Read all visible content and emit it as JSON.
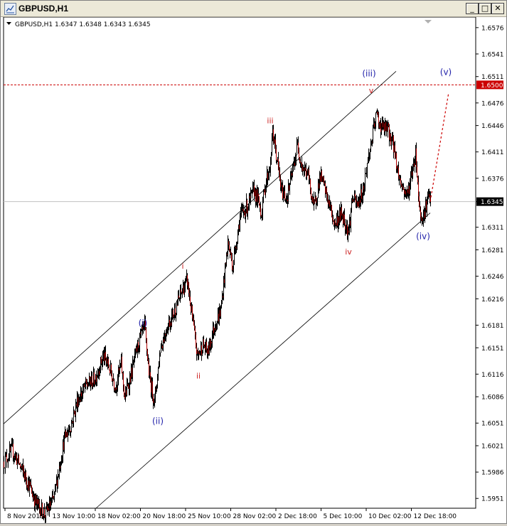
{
  "window": {
    "title": "GBPUSD,H1",
    "buttons": {
      "minimize": "_",
      "maximize": "□",
      "close": "✕"
    }
  },
  "colors": {
    "background": "#ffffff",
    "candles": "#000000",
    "level_line": "#cc0000",
    "minor_wave_labels": "#cc2222",
    "major_wave_labels": "#2222aa",
    "price_marker_bg": "#000000",
    "level_marker_bg": "#cc0000"
  },
  "icons": {
    "title": "chart-window-icon",
    "dropdown": "triangle-down-icon"
  },
  "chart_data": {
    "type": "candlestick",
    "symbol": "GBPUSD",
    "timeframe": "H1",
    "info_line": "GBPUSD,H1  1.6347 1.6348 1.6343 1.6345",
    "ohlc": {
      "open": 1.6347,
      "high": 1.6348,
      "low": 1.6343,
      "close": 1.6345
    },
    "current_price": "1.6345",
    "level_line": {
      "value": "1.6500",
      "style": "dashed"
    },
    "ylim": [
      1.5938,
      1.659
    ],
    "y_ticks": [
      "1.6576",
      "1.6541",
      "1.6511",
      "1.6476",
      "1.6446",
      "1.6411",
      "1.6376",
      "1.6345",
      "1.6311",
      "1.6281",
      "1.6246",
      "1.6216",
      "1.6181",
      "1.6151",
      "1.6116",
      "1.6086",
      "1.6051",
      "1.6021",
      "1.5986",
      "1.5951"
    ],
    "x_ticks": [
      "8 Nov 2013",
      "13 Nov 10:00",
      "18 Nov 02:00",
      "20 Nov 18:00",
      "25 Nov 10:00",
      "28 Nov 02:00",
      "2 Dec 18:00",
      "5 Dec 10:00",
      "10 Dec 02:00",
      "12 Dec 18:00"
    ],
    "price_path": [
      [
        0,
        1.6
      ],
      [
        12,
        1.6015
      ],
      [
        25,
        1.599
      ],
      [
        35,
        1.597
      ],
      [
        45,
        1.5945
      ],
      [
        58,
        1.593
      ],
      [
        70,
        1.595
      ],
      [
        85,
        1.603
      ],
      [
        95,
        1.605
      ],
      [
        103,
        1.608
      ],
      [
        115,
        1.61
      ],
      [
        128,
        1.611
      ],
      [
        140,
        1.614
      ],
      [
        148,
        1.6125
      ],
      [
        157,
        1.61
      ],
      [
        165,
        1.613
      ],
      [
        170,
        1.6085
      ],
      [
        180,
        1.612
      ],
      [
        190,
        1.616
      ],
      [
        198,
        1.6178
      ],
      [
        205,
        1.611
      ],
      [
        212,
        1.608
      ],
      [
        220,
        1.615
      ],
      [
        230,
        1.618
      ],
      [
        240,
        1.62
      ],
      [
        252,
        1.623
      ],
      [
        258,
        1.624
      ],
      [
        265,
        1.619
      ],
      [
        272,
        1.614
      ],
      [
        280,
        1.6155
      ],
      [
        287,
        1.6145
      ],
      [
        296,
        1.618
      ],
      [
        305,
        1.62
      ],
      [
        315,
        1.629
      ],
      [
        322,
        1.626
      ],
      [
        332,
        1.6325
      ],
      [
        343,
        1.634
      ],
      [
        352,
        1.636
      ],
      [
        358,
        1.6345
      ],
      [
        362,
        1.633
      ],
      [
        368,
        1.637
      ],
      [
        375,
        1.6395
      ],
      [
        378,
        1.6438
      ],
      [
        385,
        1.6395
      ],
      [
        390,
        1.636
      ],
      [
        398,
        1.635
      ],
      [
        405,
        1.638
      ],
      [
        413,
        1.642
      ],
      [
        420,
        1.639
      ],
      [
        428,
        1.638
      ],
      [
        436,
        1.6335
      ],
      [
        445,
        1.638
      ],
      [
        455,
        1.635
      ],
      [
        465,
        1.6315
      ],
      [
        475,
        1.633
      ],
      [
        485,
        1.6305
      ],
      [
        490,
        1.635
      ],
      [
        497,
        1.634
      ],
      [
        505,
        1.636
      ],
      [
        512,
        1.64
      ],
      [
        520,
        1.644
      ],
      [
        524,
        1.6461
      ],
      [
        530,
        1.6445
      ],
      [
        540,
        1.644
      ],
      [
        548,
        1.642
      ],
      [
        555,
        1.638
      ],
      [
        562,
        1.636
      ],
      [
        568,
        1.6355
      ],
      [
        575,
        1.639
      ],
      [
        579,
        1.641
      ],
      [
        585,
        1.633
      ],
      [
        590,
        1.6325
      ],
      [
        596,
        1.635
      ],
      [
        600,
        1.6345
      ]
    ],
    "channel_lines": [
      {
        "from": [
          0,
          1.605
        ],
        "to": [
          552,
          1.6518
        ]
      },
      {
        "from": [
          130,
          1.5938
        ],
        "to": [
          600,
          1.633
        ]
      }
    ],
    "forecast_line": {
      "from": [
        600,
        1.6345
      ],
      "to": [
        626,
        1.649
      ],
      "style": "dotted"
    },
    "wave_labels": [
      {
        "text": "i",
        "x": 252,
        "y": 1.6256,
        "group": "minor"
      },
      {
        "text": "ii",
        "x": 274,
        "y": 1.611,
        "group": "minor"
      },
      {
        "text": "iii",
        "x": 375,
        "y": 1.6449,
        "group": "minor"
      },
      {
        "text": "iv",
        "x": 485,
        "y": 1.6275,
        "group": "minor"
      },
      {
        "text": "v",
        "x": 517,
        "y": 1.6489,
        "group": "minor"
      },
      {
        "text": "(i)",
        "x": 196,
        "y": 1.618,
        "group": "major"
      },
      {
        "text": "(ii)",
        "x": 217,
        "y": 1.605,
        "group": "major"
      },
      {
        "text": "(iii)",
        "x": 514,
        "y": 1.6511,
        "group": "major"
      },
      {
        "text": "(iv)",
        "x": 590,
        "y": 1.6295,
        "group": "major"
      },
      {
        "text": "(v)",
        "x": 622,
        "y": 1.6513,
        "group": "major"
      }
    ]
  }
}
